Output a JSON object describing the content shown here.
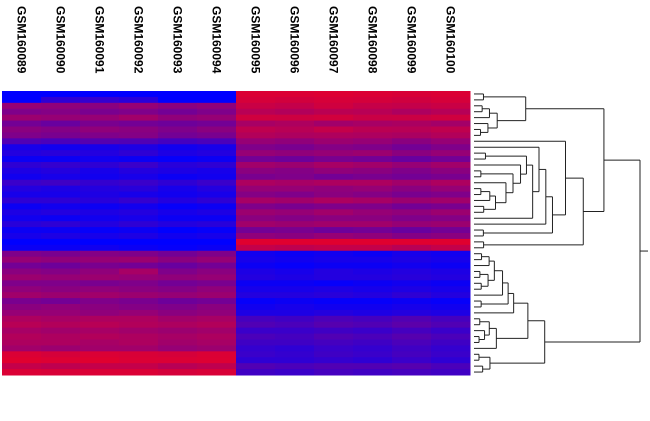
{
  "chart_data": {
    "type": "heatmap",
    "title": "",
    "columns": [
      "GSM160089",
      "GSM160090",
      "GSM160091",
      "GSM160092",
      "GSM160093",
      "GSM160094",
      "GSM160095",
      "GSM160096",
      "GSM160097",
      "GSM160098",
      "GSM160099",
      "GSM160100"
    ],
    "color_scale": {
      "low": "#0000ff",
      "mid": "#800080",
      "high": "#e0002a"
    },
    "value_range": [
      -1,
      1
    ],
    "row_dendrogram": true,
    "column_labels_rotated": true,
    "values": [
      [
        -1,
        -1,
        -1,
        -1,
        -1,
        -1,
        0.9,
        0.9,
        0.92,
        0.9,
        0.88,
        0.9
      ],
      [
        -1,
        -0.6,
        -0.55,
        -0.65,
        -1,
        -1,
        0.85,
        0.82,
        0.86,
        0.84,
        0.8,
        0.85
      ],
      [
        0.3,
        0.25,
        0.2,
        0.3,
        0.2,
        0.25,
        0.75,
        0.7,
        0.8,
        0.72,
        0.7,
        0.75
      ],
      [
        0.1,
        0.15,
        0.05,
        0.1,
        0.0,
        0.1,
        0.6,
        0.55,
        0.62,
        0.6,
        0.5,
        0.58
      ],
      [
        0.35,
        0.3,
        0.3,
        0.4,
        0.25,
        0.3,
        0.8,
        0.78,
        0.82,
        0.75,
        0.76,
        0.8
      ],
      [
        0.0,
        -0.1,
        0.05,
        0.0,
        -0.05,
        0.0,
        0.45,
        0.5,
        0.4,
        0.45,
        0.48,
        0.42
      ],
      [
        0.2,
        0.15,
        0.25,
        0.2,
        0.1,
        0.2,
        0.65,
        0.6,
        0.7,
        0.62,
        0.6,
        0.66
      ],
      [
        0.1,
        0.05,
        0.1,
        0.15,
        0.0,
        0.05,
        0.55,
        0.5,
        0.52,
        0.5,
        0.48,
        0.55
      ],
      [
        -0.3,
        -0.35,
        -0.25,
        -0.3,
        -0.4,
        -0.35,
        0.3,
        0.25,
        0.35,
        0.3,
        0.2,
        0.3
      ],
      [
        -0.8,
        -0.85,
        -0.8,
        -0.75,
        -0.85,
        -0.8,
        0.1,
        0.05,
        0.15,
        0.1,
        0.0,
        0.1
      ],
      [
        -0.7,
        -0.65,
        -0.7,
        -0.6,
        -0.75,
        -0.7,
        0.3,
        0.25,
        0.3,
        0.35,
        0.2,
        0.3
      ],
      [
        -0.9,
        -0.9,
        -0.85,
        -0.9,
        -0.95,
        -0.9,
        0.0,
        -0.05,
        0.05,
        0.0,
        -0.1,
        0.0
      ],
      [
        -0.6,
        -0.55,
        -0.6,
        -0.5,
        -0.65,
        -0.6,
        0.4,
        0.35,
        0.45,
        0.4,
        0.3,
        0.4
      ],
      [
        -0.75,
        -0.7,
        -0.8,
        -0.7,
        -0.75,
        -0.8,
        0.2,
        0.15,
        0.25,
        0.2,
        0.1,
        0.2
      ],
      [
        -0.85,
        -0.8,
        -0.85,
        -0.8,
        -0.9,
        -0.85,
        0.05,
        0.1,
        0.0,
        0.05,
        0.0,
        0.05
      ],
      [
        -0.5,
        -0.45,
        -0.55,
        -0.5,
        -0.6,
        -0.5,
        0.5,
        0.45,
        0.5,
        0.5,
        0.4,
        0.5
      ],
      [
        -0.7,
        -0.75,
        -0.7,
        -0.65,
        -0.8,
        -0.7,
        0.3,
        0.3,
        0.25,
        0.3,
        0.2,
        0.3
      ],
      [
        -0.8,
        -0.8,
        -0.75,
        -0.8,
        -0.85,
        -0.8,
        0.15,
        0.1,
        0.2,
        0.15,
        0.05,
        0.1
      ],
      [
        -0.6,
        -0.6,
        -0.65,
        -0.55,
        -0.7,
        -0.6,
        0.45,
        0.4,
        0.5,
        0.45,
        0.35,
        0.4
      ],
      [
        -0.9,
        -0.85,
        -0.9,
        -0.85,
        -0.95,
        -0.9,
        0.1,
        0.05,
        0.1,
        0.1,
        0.0,
        0.05
      ],
      [
        -0.75,
        -0.7,
        -0.75,
        -0.7,
        -0.8,
        -0.75,
        0.35,
        0.3,
        0.4,
        0.3,
        0.25,
        0.35
      ],
      [
        -0.85,
        -0.9,
        -0.85,
        -0.8,
        -0.9,
        -0.9,
        0.2,
        0.15,
        0.2,
        0.2,
        0.1,
        0.15
      ],
      [
        -0.65,
        -0.6,
        -0.7,
        -0.6,
        -0.7,
        -0.65,
        0.4,
        0.35,
        0.4,
        0.4,
        0.3,
        0.35
      ],
      [
        -0.9,
        -0.9,
        -0.95,
        -0.9,
        -1,
        -0.95,
        0.0,
        0.05,
        -0.05,
        0.0,
        -0.1,
        0.0
      ],
      [
        -0.8,
        -0.75,
        -0.8,
        -0.75,
        -0.85,
        -0.8,
        0.25,
        0.2,
        0.3,
        0.25,
        0.15,
        0.2
      ],
      [
        -1,
        -1,
        -1,
        -1,
        -1,
        -1,
        0.95,
        0.95,
        0.95,
        0.95,
        0.95,
        0.95
      ],
      [
        -0.9,
        -0.9,
        -0.85,
        -0.9,
        -0.95,
        -0.9,
        0.7,
        0.65,
        0.7,
        0.7,
        0.6,
        0.7
      ],
      [
        0.1,
        0.05,
        0.15,
        0.1,
        0.0,
        0.1,
        -0.85,
        -0.9,
        -0.85,
        -0.9,
        -0.8,
        -0.85
      ],
      [
        0.3,
        0.25,
        0.3,
        0.35,
        0.2,
        0.3,
        -0.8,
        -0.85,
        -0.8,
        -0.8,
        -0.75,
        -0.8
      ],
      [
        0.0,
        -0.05,
        0.05,
        0.0,
        -0.1,
        0.0,
        -0.9,
        -0.95,
        -0.9,
        -0.9,
        -0.85,
        -0.9
      ],
      [
        0.2,
        0.15,
        0.25,
        0.45,
        0.1,
        0.2,
        -0.75,
        -0.8,
        -0.7,
        -0.75,
        -0.7,
        -0.75
      ],
      [
        0.35,
        0.3,
        0.35,
        0.3,
        0.25,
        0.3,
        -0.7,
        -0.75,
        -0.7,
        -0.7,
        -0.65,
        -0.7
      ],
      [
        0.1,
        0.1,
        0.05,
        0.1,
        0.0,
        0.05,
        -0.9,
        -0.9,
        -0.95,
        -0.9,
        -0.85,
        -0.9
      ],
      [
        0.25,
        0.2,
        0.25,
        0.2,
        0.15,
        0.25,
        -0.8,
        -0.8,
        -0.75,
        -0.8,
        -0.75,
        -0.8
      ],
      [
        0.4,
        0.35,
        0.4,
        0.35,
        0.3,
        0.35,
        -0.7,
        -0.7,
        -0.65,
        -0.7,
        -0.6,
        -0.7
      ],
      [
        0.05,
        0.0,
        0.1,
        0.05,
        -0.05,
        0.0,
        -0.95,
        -0.9,
        -0.95,
        -0.95,
        -0.9,
        -0.95
      ],
      [
        0.2,
        0.25,
        0.2,
        0.15,
        0.1,
        0.2,
        -0.85,
        -0.8,
        -0.85,
        -0.85,
        -0.8,
        -0.85
      ],
      [
        0.3,
        0.3,
        0.25,
        0.3,
        0.2,
        0.25,
        -0.75,
        -0.75,
        -0.7,
        -0.75,
        -0.7,
        -0.75
      ],
      [
        0.5,
        0.45,
        0.5,
        0.5,
        0.4,
        0.45,
        -0.4,
        -0.45,
        -0.35,
        -0.4,
        -0.3,
        -0.4
      ],
      [
        0.6,
        0.55,
        0.6,
        0.55,
        0.5,
        0.55,
        -0.3,
        -0.35,
        -0.25,
        -0.3,
        -0.2,
        -0.3
      ],
      [
        0.45,
        0.4,
        0.45,
        0.4,
        0.35,
        0.4,
        -0.5,
        -0.5,
        -0.45,
        -0.5,
        -0.4,
        -0.5
      ],
      [
        0.55,
        0.5,
        0.55,
        0.5,
        0.45,
        0.5,
        -0.35,
        -0.4,
        -0.3,
        -0.35,
        -0.25,
        -0.35
      ],
      [
        0.5,
        0.5,
        0.45,
        0.5,
        0.4,
        0.45,
        -0.45,
        -0.45,
        -0.4,
        -0.45,
        -0.35,
        -0.45
      ],
      [
        0.4,
        0.35,
        0.4,
        0.4,
        0.3,
        0.35,
        -0.55,
        -0.6,
        -0.5,
        -0.55,
        -0.45,
        -0.55
      ],
      [
        0.9,
        0.85,
        0.9,
        0.88,
        0.85,
        0.9,
        -0.5,
        -0.55,
        -0.45,
        -0.5,
        -0.4,
        -0.5
      ],
      [
        0.95,
        0.92,
        0.95,
        0.9,
        0.9,
        0.92,
        -0.6,
        -0.6,
        -0.55,
        -0.6,
        -0.5,
        -0.6
      ],
      [
        0.7,
        0.65,
        0.7,
        0.7,
        0.6,
        0.65,
        -0.3,
        -0.35,
        -0.3,
        -0.3,
        -0.25,
        -0.35
      ],
      [
        0.9,
        0.88,
        0.9,
        0.9,
        0.85,
        0.88,
        -0.45,
        -0.5,
        -0.4,
        -0.45,
        -0.4,
        -0.45
      ]
    ]
  }
}
